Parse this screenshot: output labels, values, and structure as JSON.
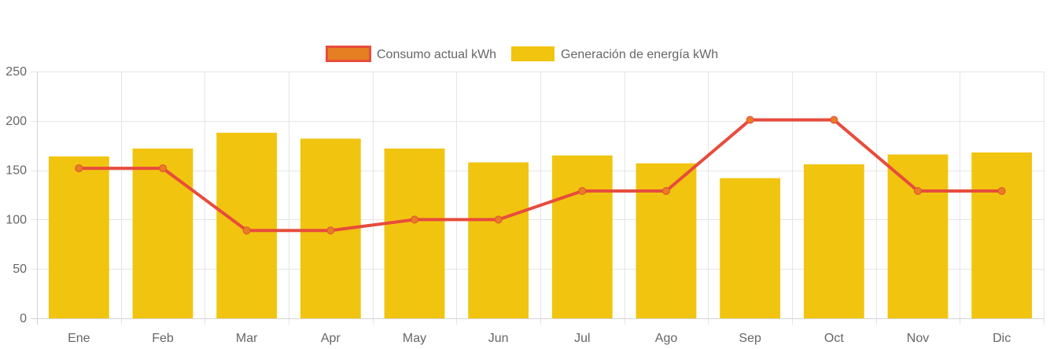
{
  "chart_data": {
    "type": "bar",
    "title": "",
    "xlabel": "",
    "ylabel": "",
    "categories": [
      "Ene",
      "Feb",
      "Mar",
      "Apr",
      "May",
      "Jun",
      "Jul",
      "Ago",
      "Sep",
      "Oct",
      "Nov",
      "Dic"
    ],
    "ylim": [
      0,
      250
    ],
    "yticks": [
      0,
      50,
      100,
      150,
      200,
      250
    ],
    "grid": true,
    "legend_position": "top-center",
    "series": [
      {
        "name": "Consumo actual kWh",
        "type": "line",
        "color": "#e74c3c",
        "point_color": "#e67e22",
        "values": [
          152,
          152,
          89,
          89,
          100,
          100,
          129,
          129,
          201,
          201,
          129,
          129
        ]
      },
      {
        "name": "Generación de energía kWh",
        "type": "bar",
        "color": "#f1c40f",
        "values": [
          164,
          172,
          188,
          182,
          172,
          158,
          165,
          157,
          142,
          156,
          166,
          168
        ]
      }
    ]
  }
}
